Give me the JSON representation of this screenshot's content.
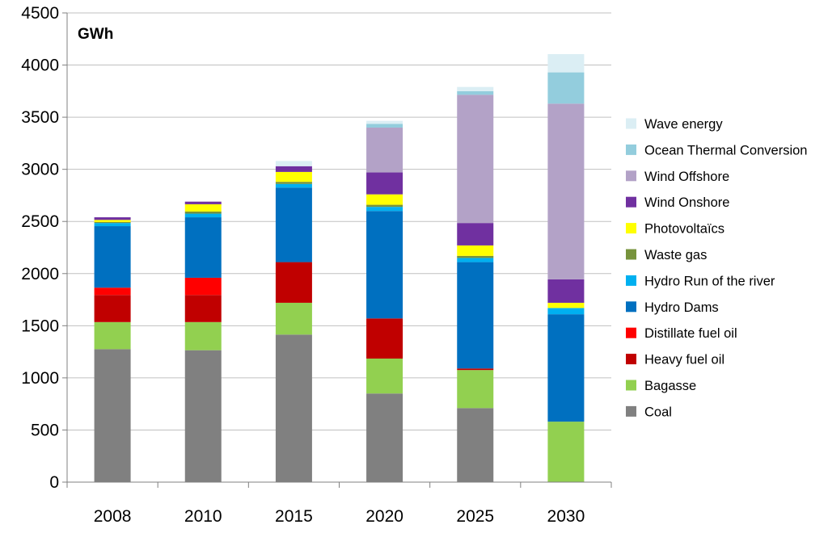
{
  "chart_data": {
    "type": "bar",
    "stacked": true,
    "unit_label": "GWh",
    "categories": [
      "2008",
      "2010",
      "2015",
      "2020",
      "2025",
      "2030"
    ],
    "ylim": [
      0,
      4500
    ],
    "yticks": [
      0,
      500,
      1000,
      1500,
      2000,
      2500,
      3000,
      3500,
      4000,
      4500
    ],
    "grid": "horizontal",
    "legend_position": "right",
    "series": [
      {
        "name": "Coal",
        "color": "#808080",
        "values": [
          1275,
          1265,
          1415,
          850,
          710,
          0
        ]
      },
      {
        "name": "Bagasse",
        "color": "#92d050",
        "values": [
          260,
          270,
          305,
          335,
          365,
          580
        ]
      },
      {
        "name": "Heavy fuel oil",
        "color": "#c00000",
        "values": [
          260,
          260,
          390,
          385,
          15,
          0
        ]
      },
      {
        "name": "Distillate fuel oil",
        "color": "#ff0000",
        "values": [
          70,
          165,
          0,
          0,
          0,
          0
        ]
      },
      {
        "name": "Hydro Dams",
        "color": "#0070c0",
        "values": [
          590,
          580,
          715,
          1030,
          1020,
          1030
        ]
      },
      {
        "name": "Hydro Run of the river",
        "color": "#00b0f0",
        "values": [
          30,
          35,
          35,
          40,
          40,
          60
        ]
      },
      {
        "name": "Waste gas",
        "color": "#77933c",
        "values": [
          10,
          20,
          20,
          20,
          20,
          0
        ]
      },
      {
        "name": "Photovoltaïcs",
        "color": "#ffff00",
        "values": [
          20,
          70,
          95,
          100,
          100,
          50
        ]
      },
      {
        "name": "Wind Onshore",
        "color": "#7030a0",
        "values": [
          25,
          25,
          55,
          210,
          215,
          225
        ]
      },
      {
        "name": "Wind Offshore",
        "color": "#b3a2c7",
        "values": [
          0,
          0,
          0,
          430,
          1230,
          1685
        ]
      },
      {
        "name": "Ocean Thermal Conversion",
        "color": "#93cddd",
        "values": [
          0,
          0,
          0,
          35,
          35,
          300
        ]
      },
      {
        "name": "Wave energy",
        "color": "#dbeef4",
        "values": [
          0,
          0,
          50,
          30,
          40,
          175
        ]
      }
    ]
  }
}
